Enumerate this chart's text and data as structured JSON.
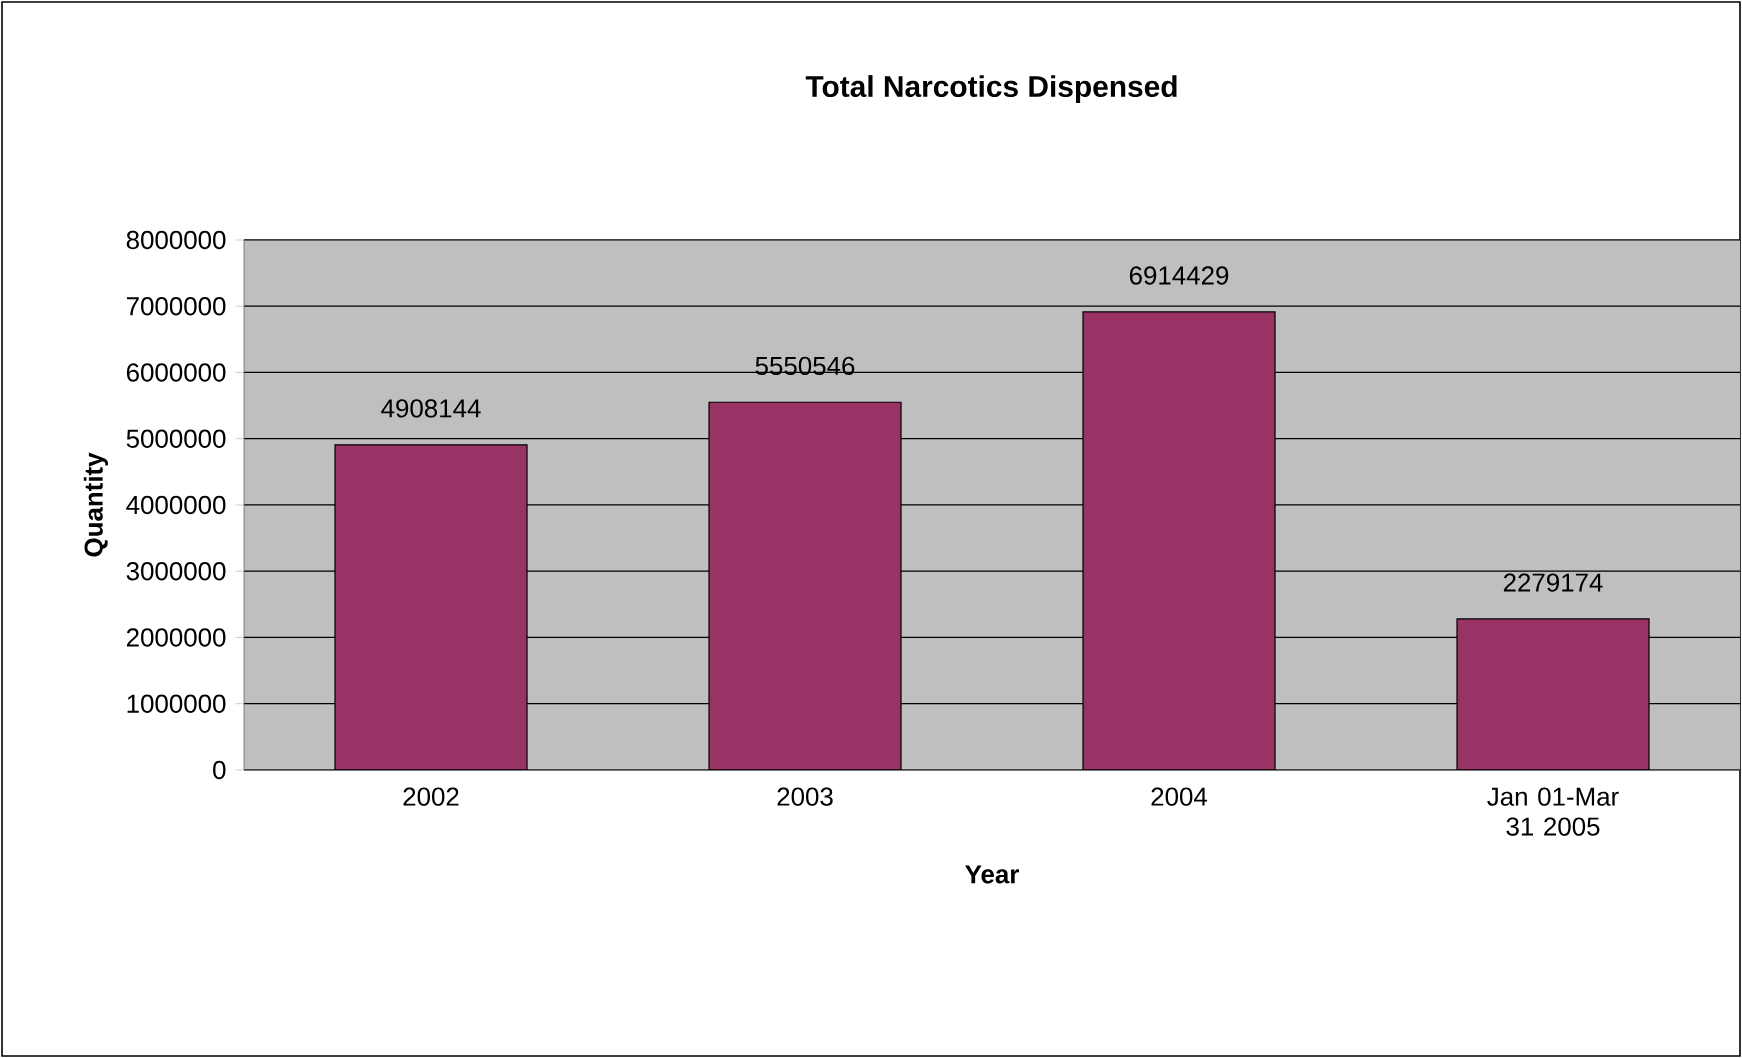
{
  "chart_data": {
    "type": "bar",
    "title": "Total Narcotics Dispensed",
    "xlabel": "Year",
    "ylabel": "Quantity",
    "categories": [
      "2002",
      "2003",
      "2004",
      "Jan 01-Mar 31 2005"
    ],
    "values": [
      4908144,
      5550546,
      6914429,
      2279174
    ],
    "color": "#993366",
    "ylim": [
      0,
      8000000
    ],
    "yticks": [
      0,
      1000000,
      2000000,
      3000000,
      4000000,
      5000000,
      6000000,
      7000000,
      8000000
    ],
    "grid": "y",
    "data_labels": true
  }
}
